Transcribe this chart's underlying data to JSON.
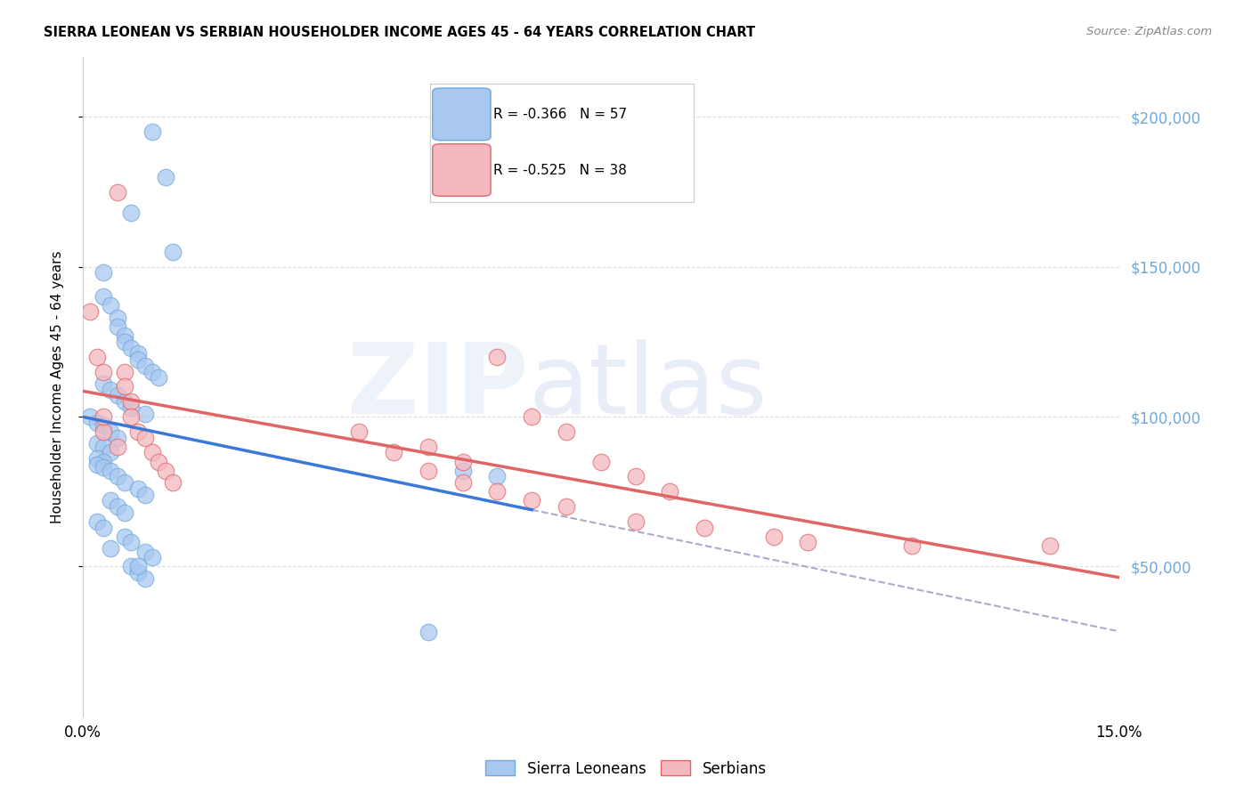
{
  "title": "SIERRA LEONEAN VS SERBIAN HOUSEHOLDER INCOME AGES 45 - 64 YEARS CORRELATION CHART",
  "source": "Source: ZipAtlas.com",
  "ylabel_label": "Householder Income Ages 45 - 64 years",
  "ylabel_ticks": [
    50000,
    100000,
    150000,
    200000
  ],
  "ylabel_tick_labels": [
    "$50,000",
    "$100,000",
    "$150,000",
    "$200,000"
  ],
  "xlim": [
    0.0,
    0.15
  ],
  "ylim": [
    0,
    220000
  ],
  "sierra_leone_R": "-0.366",
  "sierra_leone_N": "57",
  "serbian_R": "-0.525",
  "serbian_N": "38",
  "blue_fill": "#a8c8f0",
  "blue_edge": "#6fa8dc",
  "pink_fill": "#f4b8c0",
  "pink_edge": "#e06666",
  "blue_line_color": "#3c78d8",
  "pink_line_color": "#e06666",
  "dashed_line_color": "#aaaacc",
  "sl_x": [
    0.01,
    0.012,
    0.007,
    0.013,
    0.003,
    0.003,
    0.004,
    0.005,
    0.005,
    0.006,
    0.006,
    0.007,
    0.008,
    0.008,
    0.009,
    0.01,
    0.011,
    0.003,
    0.004,
    0.005,
    0.006,
    0.007,
    0.009,
    0.001,
    0.002,
    0.003,
    0.004,
    0.005,
    0.002,
    0.003,
    0.004,
    0.002,
    0.003,
    0.002,
    0.003,
    0.004,
    0.005,
    0.006,
    0.008,
    0.009,
    0.004,
    0.005,
    0.006,
    0.002,
    0.003,
    0.006,
    0.007,
    0.004,
    0.009,
    0.01,
    0.007,
    0.008,
    0.009,
    0.055,
    0.06,
    0.008,
    0.05
  ],
  "sl_y": [
    195000,
    180000,
    168000,
    155000,
    148000,
    140000,
    137000,
    133000,
    130000,
    127000,
    125000,
    123000,
    121000,
    119000,
    117000,
    115000,
    113000,
    111000,
    109000,
    107000,
    105000,
    103000,
    101000,
    100000,
    98000,
    97000,
    95000,
    93000,
    91000,
    90000,
    88000,
    86000,
    85000,
    84000,
    83000,
    82000,
    80000,
    78000,
    76000,
    74000,
    72000,
    70000,
    68000,
    65000,
    63000,
    60000,
    58000,
    56000,
    55000,
    53000,
    50000,
    48000,
    46000,
    82000,
    80000,
    50000,
    28000
  ],
  "sr_x": [
    0.005,
    0.001,
    0.002,
    0.003,
    0.003,
    0.005,
    0.006,
    0.006,
    0.007,
    0.007,
    0.008,
    0.009,
    0.01,
    0.011,
    0.012,
    0.013,
    0.05,
    0.055,
    0.06,
    0.065,
    0.07,
    0.075,
    0.08,
    0.085,
    0.04,
    0.045,
    0.05,
    0.055,
    0.06,
    0.065,
    0.07,
    0.08,
    0.09,
    0.1,
    0.105,
    0.12,
    0.14,
    0.003
  ],
  "sr_y": [
    175000,
    135000,
    120000,
    115000,
    95000,
    90000,
    115000,
    110000,
    105000,
    100000,
    95000,
    93000,
    88000,
    85000,
    82000,
    78000,
    90000,
    85000,
    120000,
    100000,
    95000,
    85000,
    80000,
    75000,
    95000,
    88000,
    82000,
    78000,
    75000,
    72000,
    70000,
    65000,
    63000,
    60000,
    58000,
    57000,
    57000,
    100000
  ],
  "background_color": "#ffffff",
  "grid_color": "#dddddd",
  "tick_label_color": "#6fa8dc"
}
